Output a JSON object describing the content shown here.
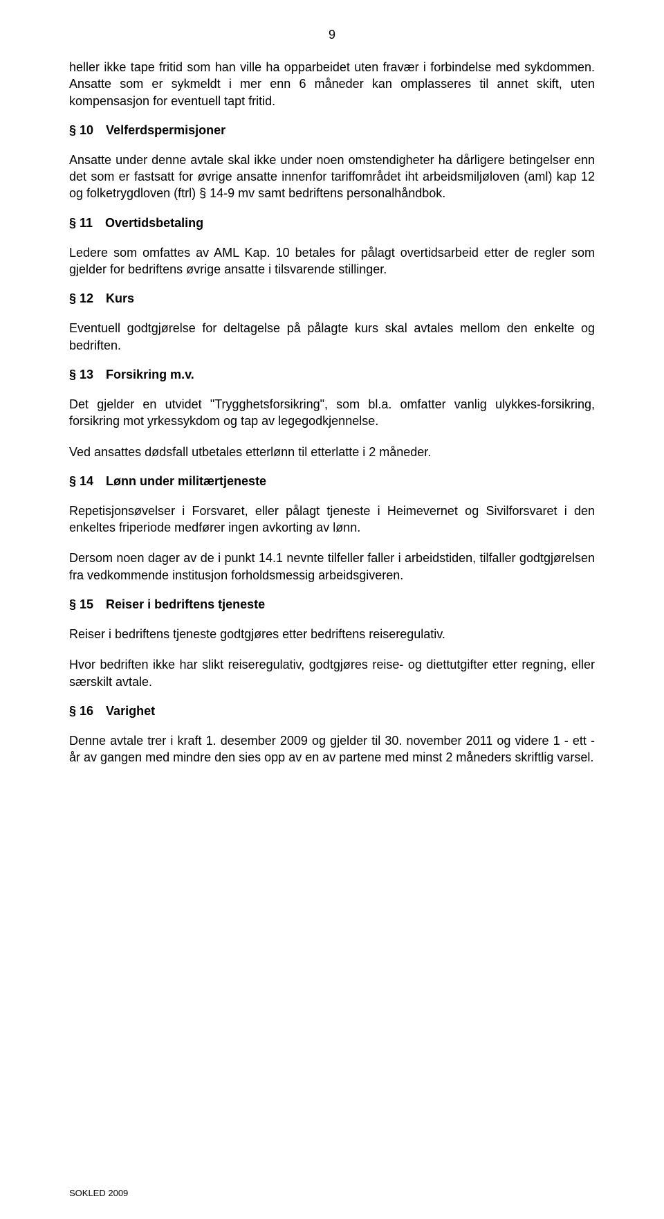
{
  "pageNumber": "9",
  "intro1": "heller ikke tape fritid som han ville ha opparbeidet uten fravær i forbindelse med sykdommen.  Ansatte som er sykmeldt i mer enn 6 måneder kan omplasseres til annet skift, uten kompensasjon for eventuell tapt fritid.",
  "s10": {
    "num": "§ 10",
    "title": "Velferdspermisjoner"
  },
  "p10": "Ansatte under denne avtale skal ikke under noen omstendigheter ha dårligere betingelser enn det som er fastsatt for øvrige ansatte innenfor tariffområdet iht arbeidsmiljøloven (aml) kap 12 og folketrygdloven (ftrl) § 14-9 mv samt bedriftens personalhåndbok.",
  "s11": {
    "num": "§ 11",
    "title": "Overtidsbetaling"
  },
  "p11": "Ledere som omfattes av AML Kap. 10 betales for pålagt overtidsarbeid etter de regler som gjelder for bedriftens øvrige ansatte i tilsvarende stillinger.",
  "s12": {
    "num": "§ 12",
    "title": "Kurs"
  },
  "p12": "Eventuell godtgjørelse for deltagelse på pålagte kurs skal avtales mellom den enkelte og bedriften.",
  "s13": {
    "num": "§ 13",
    "title": "Forsikring m.v."
  },
  "p13a": "Det gjelder en utvidet \"Trygghetsforsikring\", som bl.a. omfatter vanlig ulykkes-forsikring, forsikring mot yrkessykdom og tap av legegodkjennelse.",
  "p13b": "Ved ansattes dødsfall utbetales etterlønn til etterlatte i 2 måneder.",
  "s14": {
    "num": "§ 14",
    "title": "Lønn under militærtjeneste"
  },
  "p14a": "Repetisjonsøvelser i Forsvaret, eller pålagt tjeneste i Heimevernet og Sivilforsvaret i den enkeltes friperiode medfører ingen avkorting av lønn.",
  "p14b": "Dersom noen dager av de i punkt 14.1 nevnte tilfeller faller i arbeidstiden, tilfaller godtgjørelsen fra vedkommende institusjon forholdsmessig arbeidsgiveren.",
  "s15": {
    "num": "§ 15",
    "title": "Reiser i bedriftens tjeneste"
  },
  "p15a": "Reiser i bedriftens tjeneste godtgjøres etter bedriftens reiseregulativ.",
  "p15b": "Hvor bedriften ikke har slikt reiseregulativ, godtgjøres reise- og diettutgifter etter regning, eller særskilt avtale.",
  "s16": {
    "num": "§ 16",
    "title": "Varighet"
  },
  "p16": "Denne avtale trer i kraft 1. desember 2009 og gjelder til 30. november 2011 og videre 1 - ett - år av gangen med mindre den sies opp av en av partene med minst 2 måneders skriftlig varsel.",
  "footer": "SOKLED 2009"
}
